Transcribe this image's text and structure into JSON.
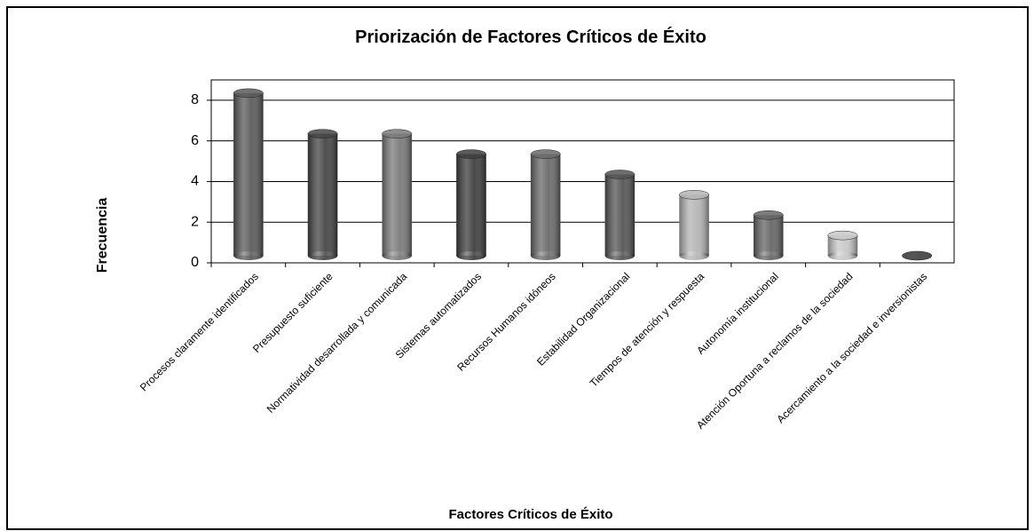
{
  "chart_data": {
    "type": "bar",
    "title": "Priorización de Factores Críticos de Éxito",
    "x_label": "Factores Críticos de Éxito",
    "y_label": "Frecuencia",
    "categories": [
      "Procesos claramente identificados",
      "Presupuesto suficiente",
      "Normatividad desarrollada y comunicada",
      "Sistemas automatizados",
      "Recursos Humanos idóneos",
      "Estabilidad Organizacional",
      "Tiempos de atención y respuesta",
      "Autonomía institucional",
      "Atención Oportuna a reclamos de la sociedad",
      "Acercamiento a la sociedad e inversionistas"
    ],
    "values": [
      8,
      6,
      6,
      5,
      5,
      4,
      3,
      2,
      1,
      0
    ],
    "colors": [
      "#5a5a5a",
      "#454545",
      "#7a7a7a",
      "#3e3e3e",
      "#6a6a6a",
      "#555555",
      "#b5b5b5",
      "#666666",
      "#c8c8c8",
      "#505050"
    ],
    "ylim": [
      0,
      9
    ],
    "yticks": [
      0,
      2,
      4,
      6,
      8
    ],
    "grid": true
  }
}
